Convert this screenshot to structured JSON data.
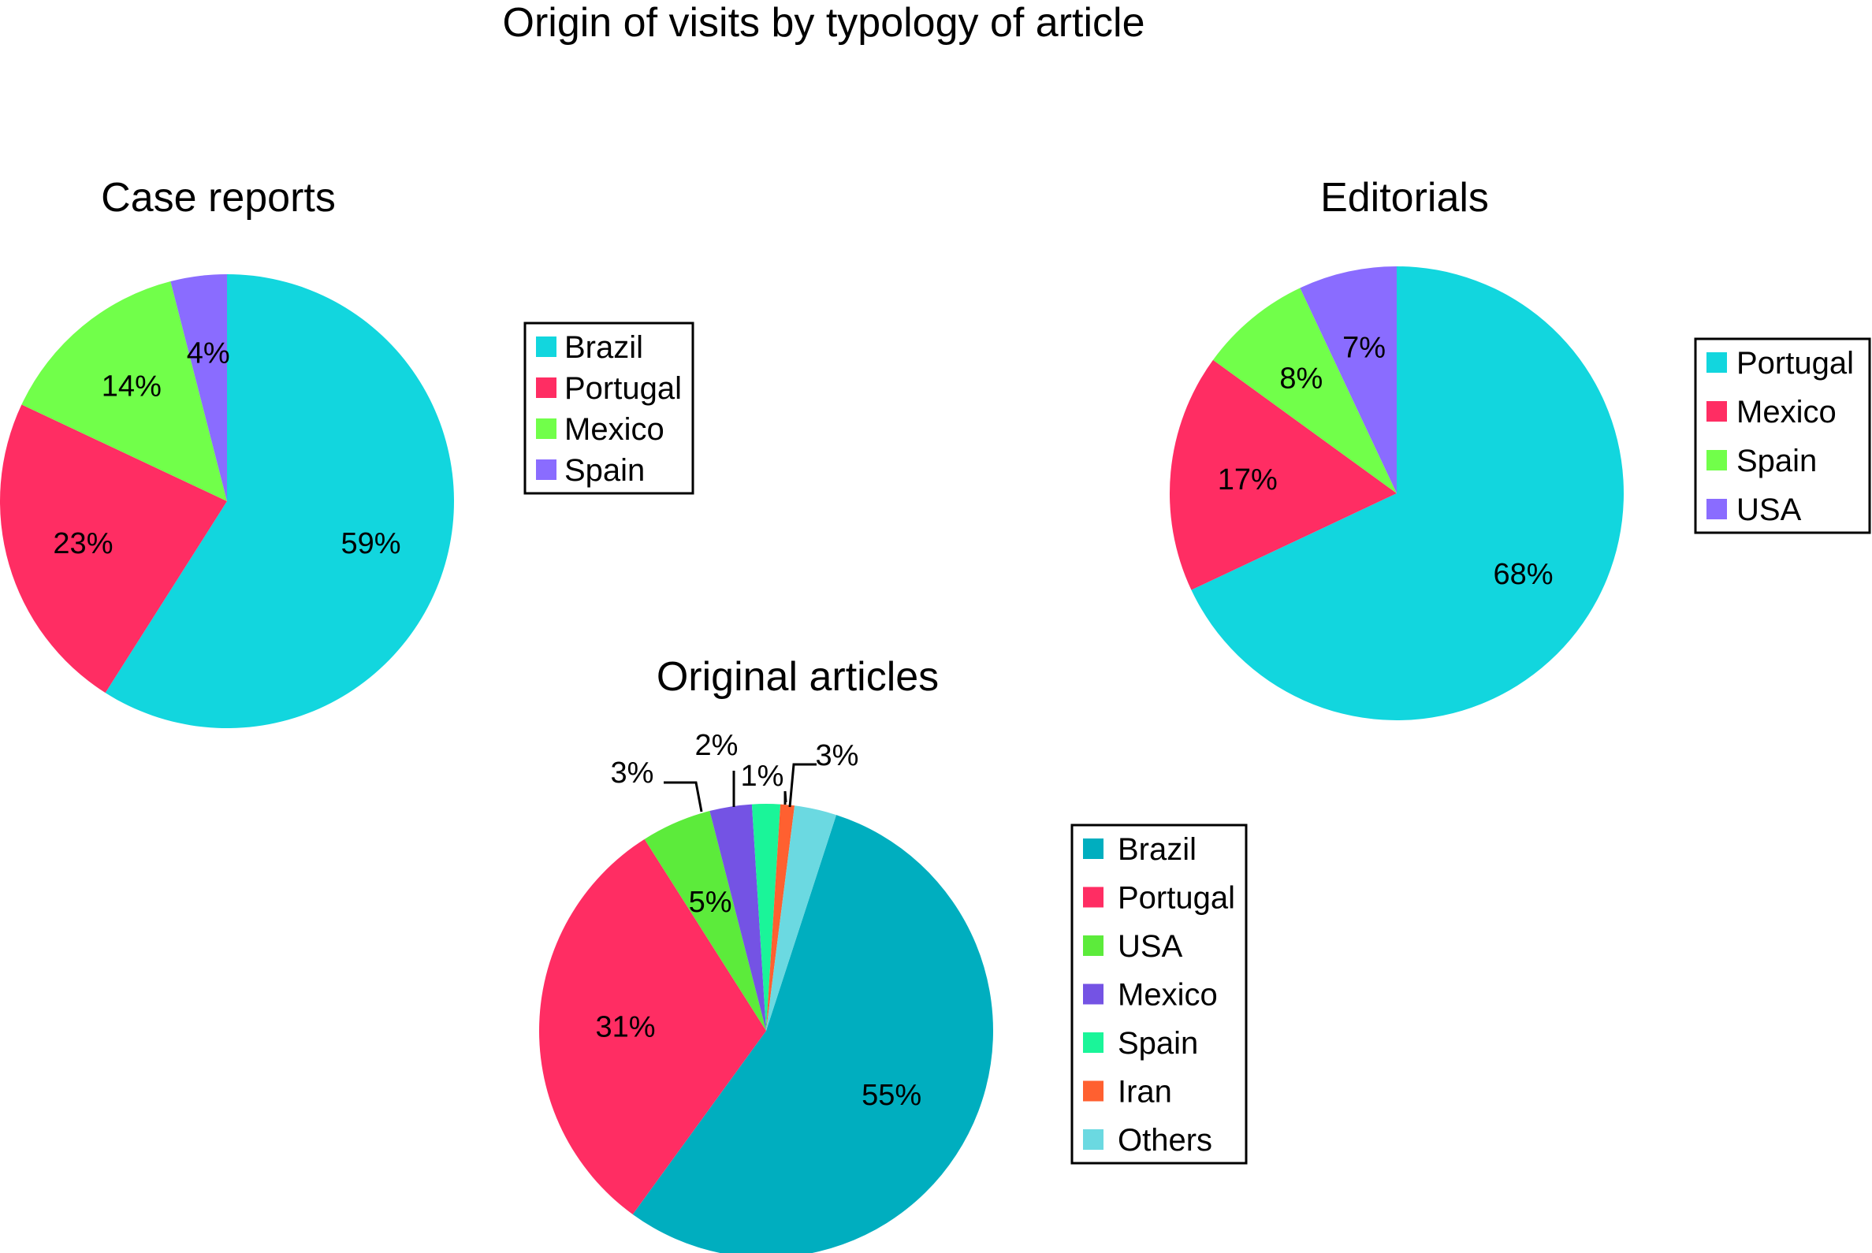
{
  "figure_title": "Origin of visits by typology of article",
  "chart_data": [
    {
      "type": "pie",
      "title": "Case reports",
      "categories": [
        "Brazil",
        "Portugal",
        "Mexico",
        "Spain"
      ],
      "values": [
        59,
        23,
        14,
        4
      ],
      "labels": [
        "59%",
        "23%",
        "14%",
        "4%"
      ],
      "colors": [
        "#12D6DE",
        "#FF2D63",
        "#71FF4A",
        "#8A6CFF"
      ],
      "start_angle_deg": 0,
      "legend": [
        "Brazil",
        "Portugal",
        "Mexico",
        "Spain"
      ],
      "legend_position": "right"
    },
    {
      "type": "pie",
      "title": "Editorials",
      "categories": [
        "Portugal",
        "Mexico",
        "Spain",
        "USA"
      ],
      "values": [
        68,
        17,
        8,
        7
      ],
      "labels": [
        "68%",
        "17%",
        "8%",
        "7%"
      ],
      "colors": [
        "#12D6DE",
        "#FF2D63",
        "#71FF4A",
        "#8A6CFF"
      ],
      "start_angle_deg": 0,
      "legend": [
        "Portugal",
        "Mexico",
        "Spain",
        "USA"
      ],
      "legend_position": "right"
    },
    {
      "type": "pie",
      "title": "Original articles",
      "categories": [
        "Brazil",
        "Portugal",
        "USA",
        "Mexico",
        "Spain",
        "Iran",
        "Others"
      ],
      "values": [
        55,
        31,
        5,
        3,
        2,
        1,
        3
      ],
      "labels": [
        "55%",
        "31%",
        "5%",
        "3%",
        "2%",
        "1%",
        "3%"
      ],
      "colors": [
        "#00AEBF",
        "#FF2D63",
        "#5CEB3B",
        "#7453E4",
        "#1AF599",
        "#FF6030",
        "#6BD9E1"
      ],
      "start_angle_deg": 18,
      "legend": [
        "Brazil",
        "Portugal",
        "USA",
        "Mexico",
        "Spain",
        "Iran",
        "Others"
      ],
      "legend_position": "right"
    }
  ]
}
